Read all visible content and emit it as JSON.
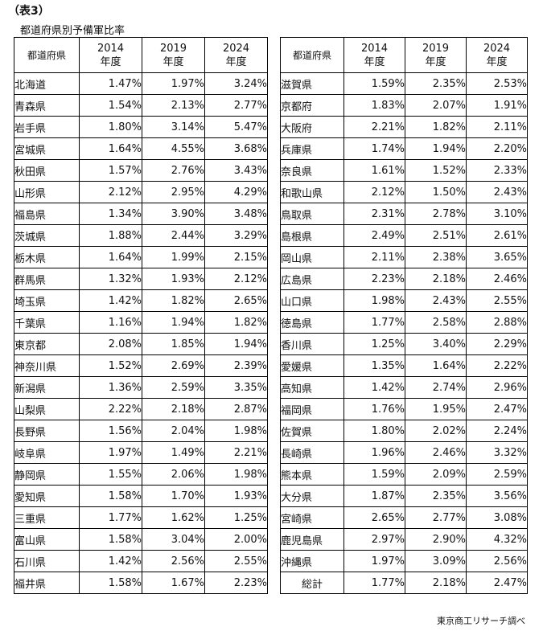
{
  "heading": "（表3）",
  "subtitle": "都道府県別予備軍比率",
  "table_header": {
    "pref": "都道府県",
    "years": [
      {
        "year": "2014",
        "suffix": "年度"
      },
      {
        "year": "2019",
        "suffix": "年度"
      },
      {
        "year": "2024",
        "suffix": "年度"
      }
    ]
  },
  "left_rows": [
    {
      "pref": "北海道",
      "v2014": "1.47%",
      "v2019": "1.97%",
      "v2024": "3.24%"
    },
    {
      "pref": "青森県",
      "v2014": "1.54%",
      "v2019": "2.13%",
      "v2024": "2.77%"
    },
    {
      "pref": "岩手県",
      "v2014": "1.80%",
      "v2019": "3.14%",
      "v2024": "5.47%"
    },
    {
      "pref": "宮城県",
      "v2014": "1.64%",
      "v2019": "4.55%",
      "v2024": "3.68%"
    },
    {
      "pref": "秋田県",
      "v2014": "1.57%",
      "v2019": "2.76%",
      "v2024": "3.43%"
    },
    {
      "pref": "山形県",
      "v2014": "2.12%",
      "v2019": "2.95%",
      "v2024": "4.29%"
    },
    {
      "pref": "福島県",
      "v2014": "1.34%",
      "v2019": "3.90%",
      "v2024": "3.48%"
    },
    {
      "pref": "茨城県",
      "v2014": "1.88%",
      "v2019": "2.44%",
      "v2024": "3.29%"
    },
    {
      "pref": "栃木県",
      "v2014": "1.64%",
      "v2019": "1.99%",
      "v2024": "2.15%"
    },
    {
      "pref": "群馬県",
      "v2014": "1.32%",
      "v2019": "1.93%",
      "v2024": "2.12%"
    },
    {
      "pref": "埼玉県",
      "v2014": "1.42%",
      "v2019": "1.82%",
      "v2024": "2.65%"
    },
    {
      "pref": "千葉県",
      "v2014": "1.16%",
      "v2019": "1.94%",
      "v2024": "1.82%"
    },
    {
      "pref": "東京都",
      "v2014": "2.08%",
      "v2019": "1.85%",
      "v2024": "1.94%"
    },
    {
      "pref": "神奈川県",
      "v2014": "1.52%",
      "v2019": "2.69%",
      "v2024": "2.39%"
    },
    {
      "pref": "新潟県",
      "v2014": "1.36%",
      "v2019": "2.59%",
      "v2024": "3.35%"
    },
    {
      "pref": "山梨県",
      "v2014": "2.22%",
      "v2019": "2.18%",
      "v2024": "2.87%"
    },
    {
      "pref": "長野県",
      "v2014": "1.56%",
      "v2019": "2.04%",
      "v2024": "1.98%"
    },
    {
      "pref": "岐阜県",
      "v2014": "1.97%",
      "v2019": "1.49%",
      "v2024": "2.21%"
    },
    {
      "pref": "静岡県",
      "v2014": "1.55%",
      "v2019": "2.06%",
      "v2024": "1.98%"
    },
    {
      "pref": "愛知県",
      "v2014": "1.58%",
      "v2019": "1.70%",
      "v2024": "1.93%"
    },
    {
      "pref": "三重県",
      "v2014": "1.77%",
      "v2019": "1.62%",
      "v2024": "1.25%"
    },
    {
      "pref": "富山県",
      "v2014": "1.58%",
      "v2019": "3.04%",
      "v2024": "2.00%"
    },
    {
      "pref": "石川県",
      "v2014": "1.42%",
      "v2019": "2.56%",
      "v2024": "2.55%"
    },
    {
      "pref": "福井県",
      "v2014": "1.58%",
      "v2019": "1.67%",
      "v2024": "2.23%"
    }
  ],
  "right_rows": [
    {
      "pref": "滋賀県",
      "v2014": "1.59%",
      "v2019": "2.35%",
      "v2024": "2.53%"
    },
    {
      "pref": "京都府",
      "v2014": "1.83%",
      "v2019": "2.07%",
      "v2024": "1.91%"
    },
    {
      "pref": "大阪府",
      "v2014": "2.21%",
      "v2019": "1.82%",
      "v2024": "2.11%"
    },
    {
      "pref": "兵庫県",
      "v2014": "1.74%",
      "v2019": "1.94%",
      "v2024": "2.20%"
    },
    {
      "pref": "奈良県",
      "v2014": "1.61%",
      "v2019": "1.52%",
      "v2024": "2.33%"
    },
    {
      "pref": "和歌山県",
      "v2014": "2.12%",
      "v2019": "1.50%",
      "v2024": "2.43%"
    },
    {
      "pref": "鳥取県",
      "v2014": "2.31%",
      "v2019": "2.78%",
      "v2024": "3.10%"
    },
    {
      "pref": "島根県",
      "v2014": "2.49%",
      "v2019": "2.51%",
      "v2024": "2.61%"
    },
    {
      "pref": "岡山県",
      "v2014": "2.11%",
      "v2019": "2.38%",
      "v2024": "3.65%"
    },
    {
      "pref": "広島県",
      "v2014": "2.23%",
      "v2019": "2.18%",
      "v2024": "2.46%"
    },
    {
      "pref": "山口県",
      "v2014": "1.98%",
      "v2019": "2.43%",
      "v2024": "2.55%"
    },
    {
      "pref": "徳島県",
      "v2014": "1.77%",
      "v2019": "2.58%",
      "v2024": "2.88%"
    },
    {
      "pref": "香川県",
      "v2014": "1.25%",
      "v2019": "3.40%",
      "v2024": "2.29%"
    },
    {
      "pref": "愛媛県",
      "v2014": "1.35%",
      "v2019": "1.64%",
      "v2024": "2.22%"
    },
    {
      "pref": "高知県",
      "v2014": "1.42%",
      "v2019": "2.74%",
      "v2024": "2.96%"
    },
    {
      "pref": "福岡県",
      "v2014": "1.76%",
      "v2019": "1.95%",
      "v2024": "2.47%"
    },
    {
      "pref": "佐賀県",
      "v2014": "1.80%",
      "v2019": "2.02%",
      "v2024": "2.24%"
    },
    {
      "pref": "長崎県",
      "v2014": "1.96%",
      "v2019": "2.46%",
      "v2024": "3.32%"
    },
    {
      "pref": "熊本県",
      "v2014": "1.59%",
      "v2019": "2.09%",
      "v2024": "2.59%"
    },
    {
      "pref": "大分県",
      "v2014": "1.87%",
      "v2019": "2.35%",
      "v2024": "3.56%"
    },
    {
      "pref": "宮崎県",
      "v2014": "2.65%",
      "v2019": "2.77%",
      "v2024": "3.08%"
    },
    {
      "pref": "鹿児島県",
      "v2014": "2.97%",
      "v2019": "2.90%",
      "v2024": "4.32%"
    },
    {
      "pref": "沖縄県",
      "v2014": "1.97%",
      "v2019": "3.09%",
      "v2024": "2.56%"
    }
  ],
  "total_row": {
    "label": "総計",
    "v2014": "1.77%",
    "v2019": "2.18%",
    "v2024": "2.47%"
  },
  "source": "東京商工リサーチ調べ"
}
